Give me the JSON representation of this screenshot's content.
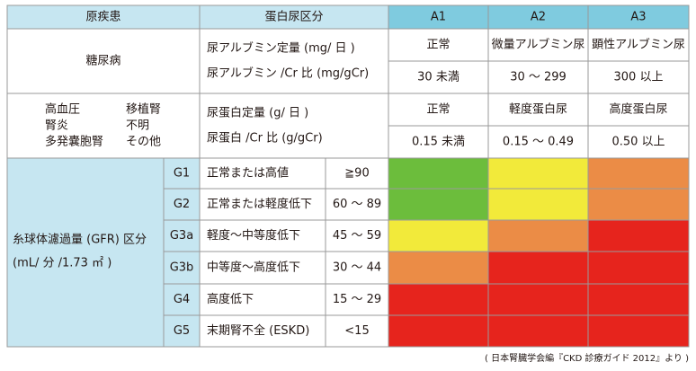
{
  "header": {
    "cause": "原疾患",
    "protein_category": "蛋白尿区分",
    "stages": [
      "A1",
      "A2",
      "A3"
    ]
  },
  "diabetes": {
    "label": "糖尿病",
    "measures": [
      "尿アルブミン定量 (mg/ 日 )",
      "尿アルブミン /Cr 比 (mg/gCr)"
    ],
    "grades": [
      "正常",
      "微量アルブミン尿",
      "顕性アルブミン尿"
    ],
    "ranges": [
      "30 未満",
      "30 〜 299",
      "300 以上"
    ]
  },
  "other": {
    "labels": [
      "高血圧",
      "移植腎",
      "腎炎",
      "不明",
      "多発嚢胞腎",
      "その他"
    ],
    "measures": [
      "尿蛋白定量 (g/ 日 )",
      "尿蛋白 /Cr 比 (g/gCr)"
    ],
    "grades": [
      "正常",
      "軽度蛋白尿",
      "高度蛋白尿"
    ],
    "ranges": [
      "0.15 未満",
      "0.15 〜 0.49",
      "0.50 以上"
    ]
  },
  "gfr": {
    "label_lines": [
      "糸球体濾過量 (GFR) 区分",
      "(mL/ 分 /1.73 ㎡ )"
    ],
    "rows": [
      {
        "stage": "G1",
        "description": "正常または高値",
        "range": "≧90",
        "colors": [
          "#6cbd3c",
          "#f2ea3a",
          "#eb8c46"
        ]
      },
      {
        "stage": "G2",
        "description": "正常または軽度低下",
        "range": "60 〜 89",
        "colors": [
          "#6cbd3c",
          "#f2ea3a",
          "#eb8c46"
        ]
      },
      {
        "stage": "G3a",
        "description": "軽度〜中等度低下",
        "range": "45 〜 59",
        "colors": [
          "#f2ea3a",
          "#eb8c46",
          "#e6241d"
        ]
      },
      {
        "stage": "G3b",
        "description": "中等度〜高度低下",
        "range": "30 〜 44",
        "colors": [
          "#eb8c46",
          "#e6241d",
          "#e6241d"
        ]
      },
      {
        "stage": "G4",
        "description": "高度低下",
        "range": "15 〜 29",
        "colors": [
          "#e6241d",
          "#e6241d",
          "#e6241d"
        ]
      },
      {
        "stage": "G5",
        "description": "末期腎不全 (ESKD)",
        "range": "<15",
        "colors": [
          "#e6241d",
          "#e6241d",
          "#e6241d"
        ]
      }
    ]
  },
  "source": "( 日本腎臓学会編『CKD 診療ガイド 2012』より )"
}
